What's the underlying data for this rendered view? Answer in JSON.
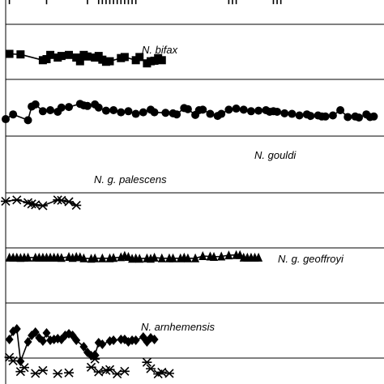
{
  "chart_data": {
    "type": "line",
    "title": "",
    "xlabel": "",
    "ylabel": "",
    "xlim": [
      0,
      100
    ],
    "ylim": [
      0,
      100
    ],
    "grid": false,
    "series": [
      {
        "name": "N. bifax",
        "marker": "square",
        "x": [
          1,
          4,
          10,
          11,
          12,
          14,
          15,
          17,
          19,
          20,
          21,
          22,
          24,
          25,
          26,
          27,
          28,
          31,
          32,
          35,
          36,
          38,
          39,
          40,
          41,
          42
        ],
        "y": [
          90,
          89,
          78,
          80,
          88,
          83,
          86,
          88,
          83,
          76,
          88,
          85,
          83,
          86,
          79,
          75,
          76,
          82,
          84,
          78,
          84,
          72,
          76,
          77,
          82,
          78
        ]
      },
      {
        "name": "N. gouldi",
        "marker": "circle",
        "x": [
          0,
          2,
          6,
          7,
          8,
          10,
          12,
          14,
          15,
          17,
          20,
          21,
          22,
          24,
          25,
          27,
          29,
          31,
          33,
          35,
          37,
          39,
          40,
          43,
          45,
          46,
          48,
          49,
          51,
          52,
          53,
          55,
          57,
          58,
          60,
          62,
          64,
          66,
          68,
          70,
          71,
          72,
          73,
          75,
          77,
          79,
          81,
          82,
          84,
          85,
          86,
          88,
          90,
          92,
          94,
          95,
          97,
          98,
          99
        ],
        "y": [
          43,
          52,
          41,
          67,
          71,
          58,
          60,
          57,
          65,
          66,
          72,
          69,
          68,
          71,
          65,
          59,
          60,
          56,
          58,
          53,
          56,
          61,
          56,
          55,
          54,
          52,
          64,
          62,
          51,
          60,
          61,
          53,
          49,
          53,
          61,
          63,
          61,
          58,
          59,
          60,
          57,
          58,
          57,
          54,
          53,
          50,
          52,
          49,
          50,
          48,
          48,
          50,
          60,
          47,
          48,
          46,
          52,
          47,
          48
        ]
      },
      {
        "name": "N. g. palescens",
        "marker": "star",
        "x": [
          0,
          3,
          6,
          7,
          8,
          10,
          14,
          15,
          17,
          19
        ],
        "y": [
          21,
          24,
          18,
          15,
          13,
          11,
          24,
          23,
          20,
          12
        ]
      },
      {
        "name": "N. g. geoffroyi",
        "marker": "triangle",
        "x": [
          1,
          2,
          3,
          4,
          5,
          6,
          8,
          9,
          10,
          11,
          12,
          13,
          14,
          15,
          17,
          18,
          19,
          20,
          21,
          23,
          24,
          26,
          28,
          29,
          31,
          32,
          33,
          34,
          35,
          36,
          38,
          39,
          40,
          42,
          44,
          45,
          47,
          48,
          49,
          51,
          53,
          55,
          56,
          58,
          60,
          62,
          63,
          64,
          65,
          66,
          67,
          68
        ],
        "y": [
          27,
          27,
          27,
          26,
          27,
          27,
          27,
          27,
          27,
          27,
          27,
          27,
          27,
          26,
          29,
          26,
          29,
          28,
          25,
          24,
          25,
          25,
          25,
          26,
          28,
          32,
          29,
          24,
          25,
          24,
          25,
          24,
          27,
          25,
          25,
          25,
          25,
          27,
          25,
          25,
          31,
          30,
          29,
          30,
          33,
          34,
          34,
          27,
          27,
          27,
          27,
          27
        ]
      },
      {
        "name": "N. arnhemensis",
        "marker": "diamond",
        "x": [
          1,
          2,
          3,
          4,
          6,
          7,
          8,
          9,
          10,
          11,
          12,
          13,
          14,
          15,
          16,
          17,
          18,
          19,
          21,
          22,
          23,
          24,
          25,
          26,
          28,
          29,
          31,
          32,
          33,
          34,
          35,
          37,
          38,
          39,
          40
        ],
        "y": [
          31,
          41,
          44,
          4,
          28,
          36,
          40,
          33,
          29,
          39,
          30,
          31,
          32,
          31,
          36,
          38,
          36,
          30,
          22,
          15,
          11,
          12,
          27,
          25,
          29,
          30,
          31,
          31,
          28,
          30,
          30,
          34,
          28,
          33,
          31
        ]
      },
      {
        "name": "",
        "marker": "cross",
        "x": [
          1,
          11,
          22,
          25,
          26,
          27,
          28,
          29,
          30,
          31,
          32,
          33,
          34,
          35,
          60,
          61,
          62,
          72,
          73,
          74
        ],
        "y": [
          99,
          98,
          98,
          99,
          99,
          99,
          99,
          99,
          99,
          99,
          99,
          98,
          99,
          99,
          99,
          98,
          99,
          99,
          99,
          99
        ]
      },
      {
        "name": "",
        "marker": "star",
        "x": [
          1,
          2,
          4,
          5,
          8,
          10,
          14,
          17,
          23,
          24,
          25,
          27,
          28,
          30,
          32,
          38,
          39,
          41,
          42,
          44
        ],
        "y": [
          97,
          85,
          48,
          62,
          42,
          52,
          41,
          44,
          63,
          91,
          47,
          52,
          55,
          40,
          49,
          80,
          58,
          40,
          46,
          42
        ]
      }
    ],
    "bands": [
      {
        "label": "N. bifax",
        "top_ref": 100
      },
      {
        "label": "N. gouldi",
        "top_ref": 100
      },
      {
        "label": "N. g. palescens",
        "top_ref": 100
      },
      {
        "label": "N. g. geoffroyi",
        "top_ref": 100
      },
      {
        "label": "N. arnhemensis",
        "top_ref": 100
      }
    ],
    "labels": [
      "N. bifax",
      "N. gouldi",
      "N. g. palescens",
      "N. g. geoffroyi",
      "N. arnhemensis"
    ]
  }
}
